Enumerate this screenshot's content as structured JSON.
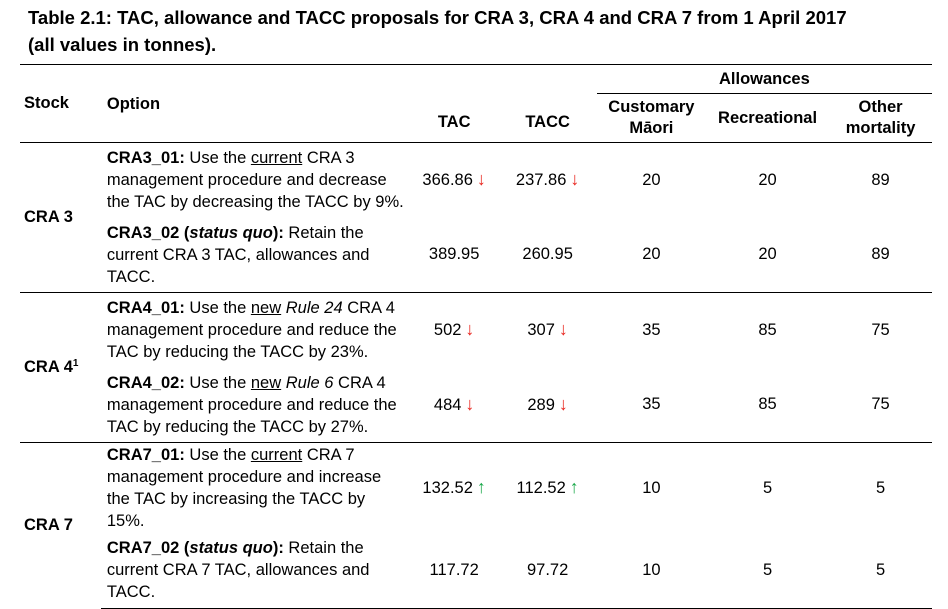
{
  "title": {
    "line1": "Table 2.1: TAC, allowance and TACC proposals for CRA 3, CRA 4 and CRA 7 from 1 April 2017",
    "line2": "(all values in tonnes)."
  },
  "headers": {
    "stock": "Stock",
    "option": "Option",
    "tac": "TAC",
    "tacc": "TACC",
    "allowances": "Allowances",
    "customary_1": "Customary",
    "customary_2": "Māori",
    "recreational": "Recreational",
    "other_1": "Other",
    "other_2": "mortality"
  },
  "colors": {
    "down_arrow": "#e8231c",
    "up_arrow": "#1aa84a"
  },
  "arrows": {
    "down": "🡓",
    "up": "🡑"
  },
  "groups": [
    {
      "stock": "CRA 3",
      "stock_sup": "",
      "rows": [
        {
          "code": "CRA3_01:",
          "p1": " Use the ",
          "u": "current",
          "p2": " CRA 3 management procedure and decrease the TAC by decreasing the TACC by 9%.",
          "tac": "366.86",
          "tac_dir": "down",
          "tacc": "237.86",
          "tacc_dir": "down",
          "customary": "20",
          "recreational": "20",
          "other": "89"
        },
        {
          "code": "CRA3_02 (",
          "code_it": "status quo",
          "code_end": "):",
          "p1": " Retain the current CRA 3 TAC, allowances and TACC.",
          "tac": "389.95",
          "tac_dir": "",
          "tacc": "260.95",
          "tacc_dir": "",
          "customary": "20",
          "recreational": "20",
          "other": "89"
        }
      ]
    },
    {
      "stock": "CRA 4",
      "stock_sup": "1",
      "rows": [
        {
          "code": "CRA4_01:",
          "p1": " Use the ",
          "u": "new",
          "it": "Rule 24",
          "p2": " CRA 4 management procedure and reduce the TAC by reducing the TACC by 23%.",
          "tac": "502",
          "tac_dir": "down",
          "tacc": "307",
          "tacc_dir": "down",
          "customary": "35",
          "recreational": "85",
          "other": "75"
        },
        {
          "code": "CRA4_02:",
          "p1": " Use the ",
          "u": "new",
          "it": "Rule 6",
          "p2": " CRA 4 management procedure and reduce the TAC by reducing the TACC by 27%.",
          "tac": "484",
          "tac_dir": "down",
          "tacc": "289",
          "tacc_dir": "down",
          "customary": "35",
          "recreational": "85",
          "other": "75"
        }
      ]
    },
    {
      "stock": "CRA 7",
      "stock_sup": "",
      "rows": [
        {
          "code": "CRA7_01:",
          "p1": " Use the ",
          "u": "current",
          "p2": " CRA 7 management procedure and increase the TAC by increasing the TACC by 15%.",
          "tac": "132.52",
          "tac_dir": "up",
          "tacc": "112.52",
          "tacc_dir": "up",
          "customary": "10",
          "recreational": "5",
          "other": "5"
        },
        {
          "code": "CRA7_02 (",
          "code_it": "status quo",
          "code_end": "):",
          "p1": " Retain the current CRA 7 TAC, allowances and TACC.",
          "tac": "117.72",
          "tac_dir": "",
          "tacc": "97.72",
          "tacc_dir": "",
          "customary": "10",
          "recreational": "5",
          "other": "5"
        }
      ]
    }
  ]
}
